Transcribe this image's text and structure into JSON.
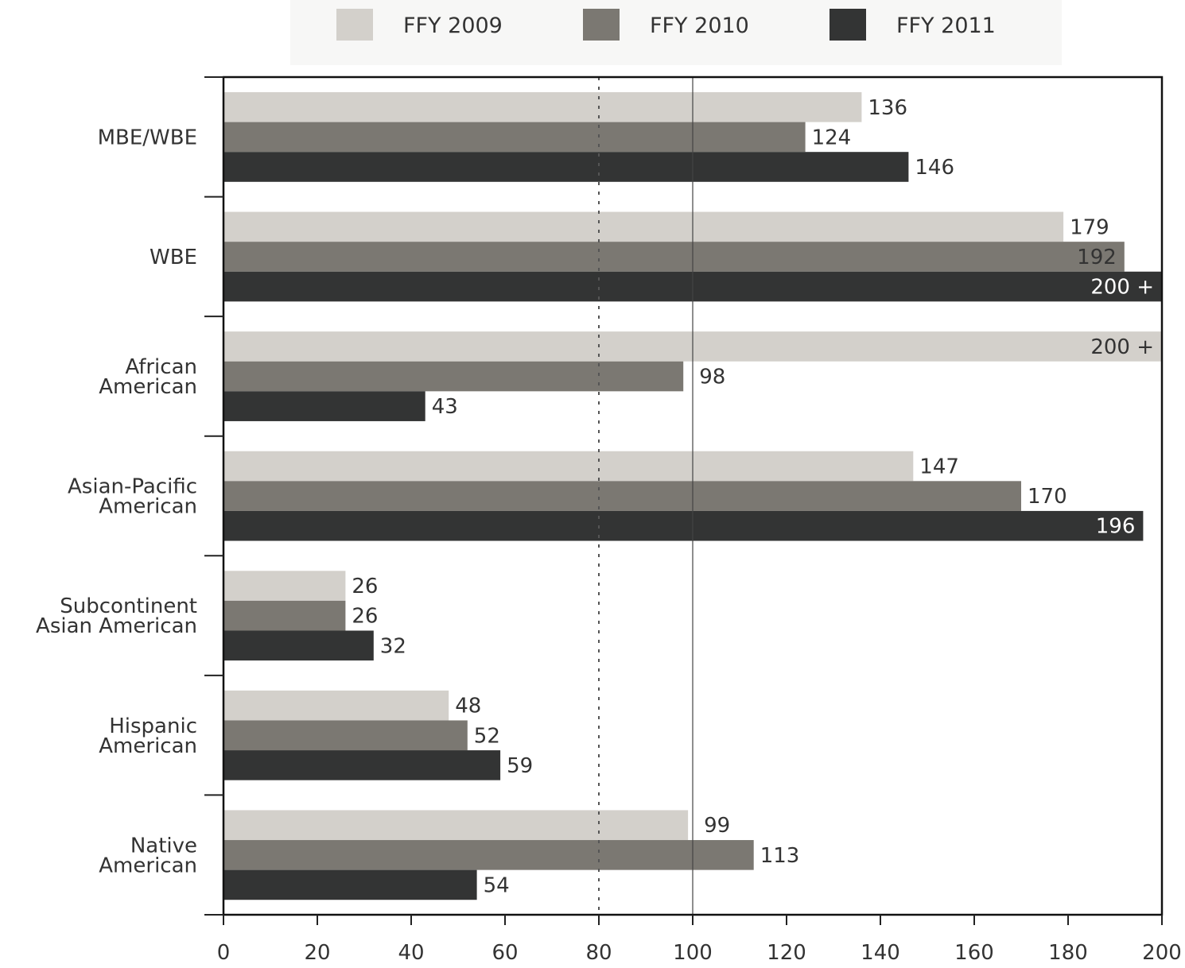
{
  "chart_data": {
    "type": "bar",
    "orientation": "horizontal",
    "title": "",
    "xlabel": "",
    "ylabel": "",
    "xlim": [
      0,
      200
    ],
    "x_ticks": [
      "0",
      "20",
      "40",
      "60",
      "80",
      "100",
      "120",
      "140",
      "160",
      "180",
      "200"
    ],
    "reference_lines": [
      {
        "value": 80,
        "style": "dotted"
      },
      {
        "value": 100,
        "style": "solid"
      }
    ],
    "legend_position": "top",
    "categories": [
      [
        "MBE/WBE"
      ],
      [
        "WBE"
      ],
      [
        "African",
        "American"
      ],
      [
        "Asian-Pacific",
        "American"
      ],
      [
        "Subcontinent",
        "Asian American"
      ],
      [
        "Hispanic",
        "American"
      ],
      [
        "Native",
        "American"
      ]
    ],
    "series": [
      {
        "name": "FFY 2009",
        "color": "#d3d0cb",
        "values": [
          136,
          179,
          200,
          147,
          26,
          48,
          99
        ],
        "labels": [
          "136",
          "179",
          "200 +",
          "147",
          "26",
          "48",
          "99"
        ]
      },
      {
        "name": "FFY 2010",
        "color": "#7b7872",
        "values": [
          124,
          192,
          98,
          170,
          26,
          52,
          113
        ],
        "labels": [
          "124",
          "192",
          "98",
          "170",
          "26",
          "52",
          "113"
        ]
      },
      {
        "name": "FFY 2011",
        "color": "#333434",
        "values": [
          146,
          200,
          43,
          196,
          32,
          59,
          54
        ],
        "labels": [
          "146",
          "200 +",
          "43",
          "196",
          "32",
          "59",
          "54"
        ]
      }
    ]
  }
}
